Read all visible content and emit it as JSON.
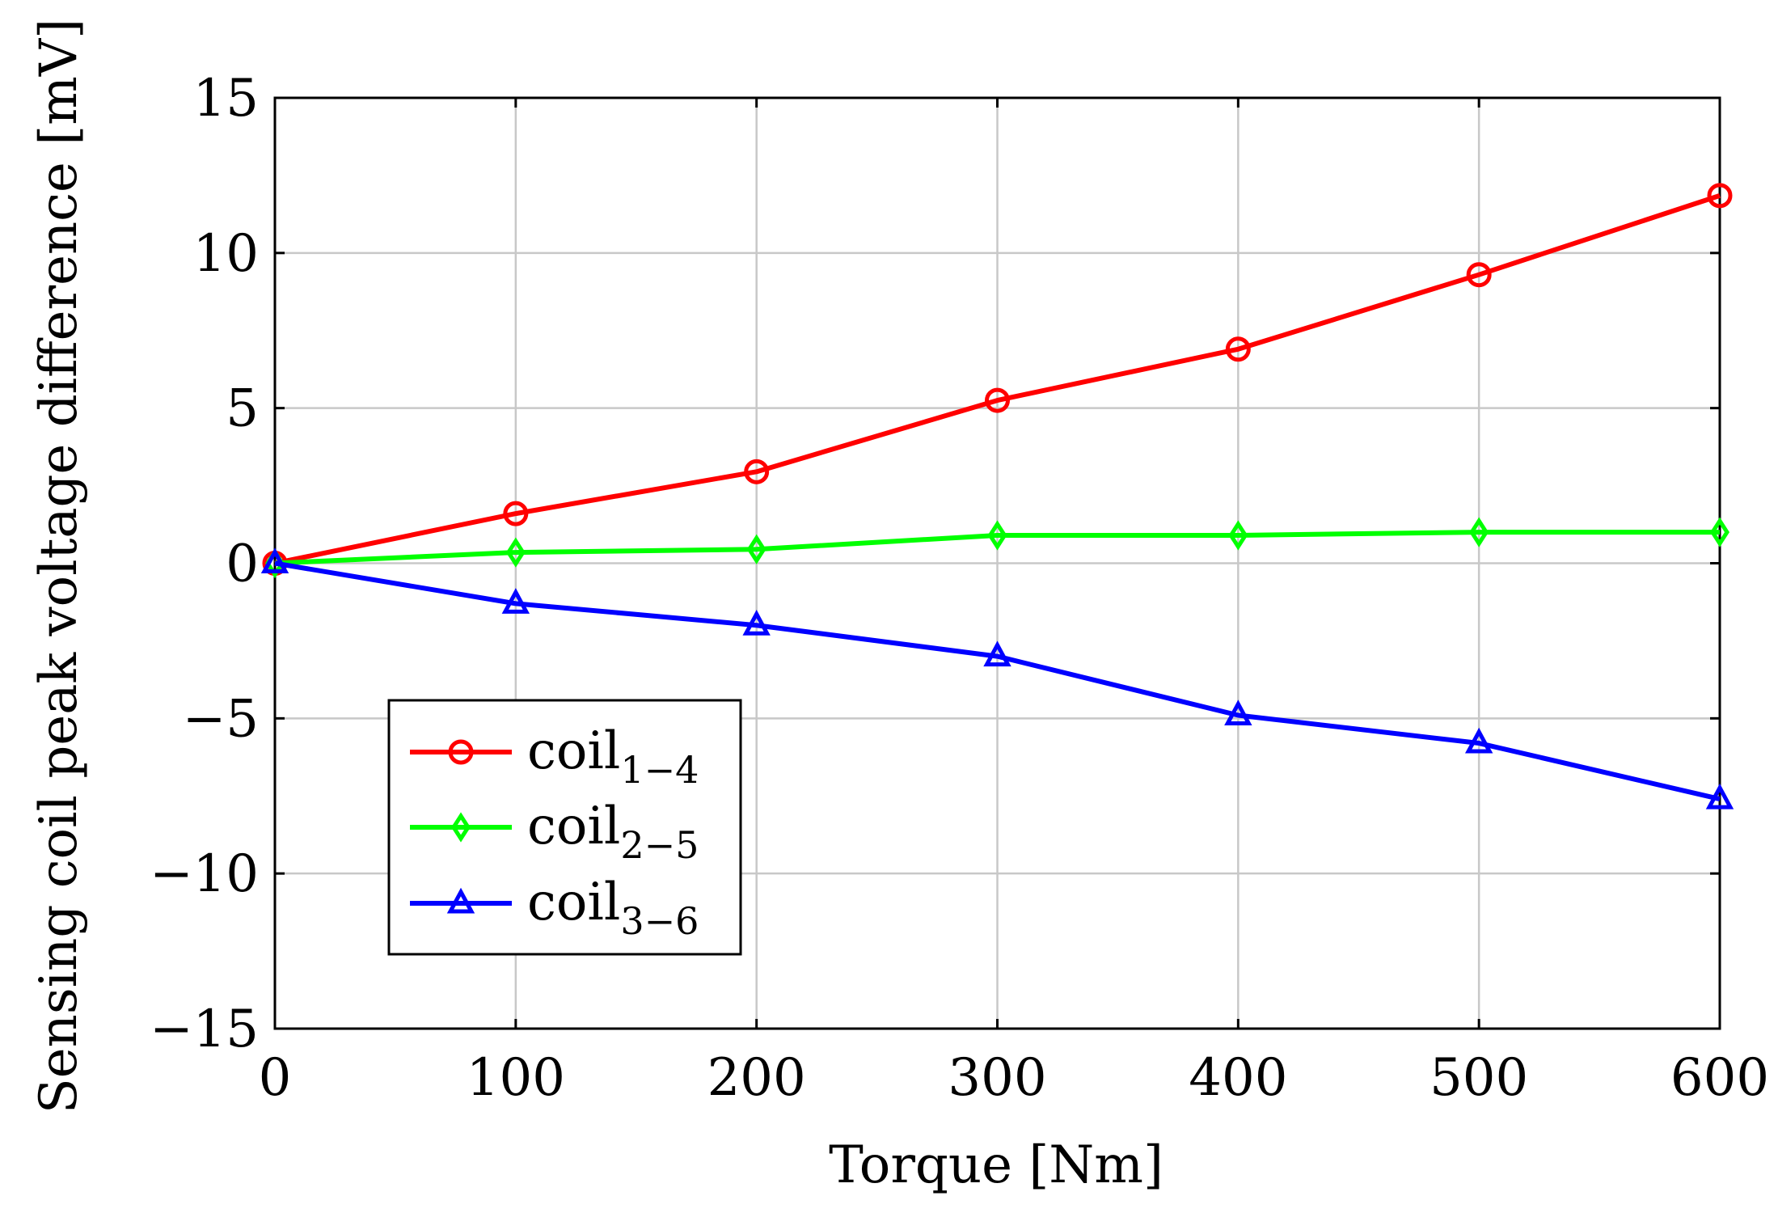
{
  "chart_data": {
    "type": "line",
    "title": "",
    "xlabel": "Torque [Nm]",
    "ylabel": "Sensing coil peak voltage difference [mV]",
    "xlim": [
      0,
      600
    ],
    "ylim": [
      -15,
      15
    ],
    "grid": true,
    "x_ticks": [
      "0",
      "100",
      "200",
      "300",
      "400",
      "500",
      "600"
    ],
    "y_ticks": [
      "15",
      "10",
      "5",
      "0",
      "−5",
      "−10",
      "−15"
    ],
    "x": [
      0,
      100,
      200,
      300,
      400,
      500,
      600
    ],
    "series": [
      {
        "name": "coil",
        "subscript": "1−4",
        "color": "#ff0000",
        "marker": "circle",
        "values": [
          0,
          1.6,
          2.95,
          5.25,
          6.9,
          9.3,
          11.85
        ]
      },
      {
        "name": "coil",
        "subscript": "2−5",
        "color": "#00ff00",
        "marker": "diamond",
        "values": [
          0,
          0.35,
          0.45,
          0.9,
          0.9,
          1.0,
          1.0
        ]
      },
      {
        "name": "coil",
        "subscript": "3−6",
        "color": "#0000ff",
        "marker": "triangle",
        "values": [
          0,
          -1.3,
          -2.0,
          -3.0,
          -4.9,
          -5.8,
          -7.6
        ]
      }
    ],
    "legend_position": "lower-left"
  }
}
